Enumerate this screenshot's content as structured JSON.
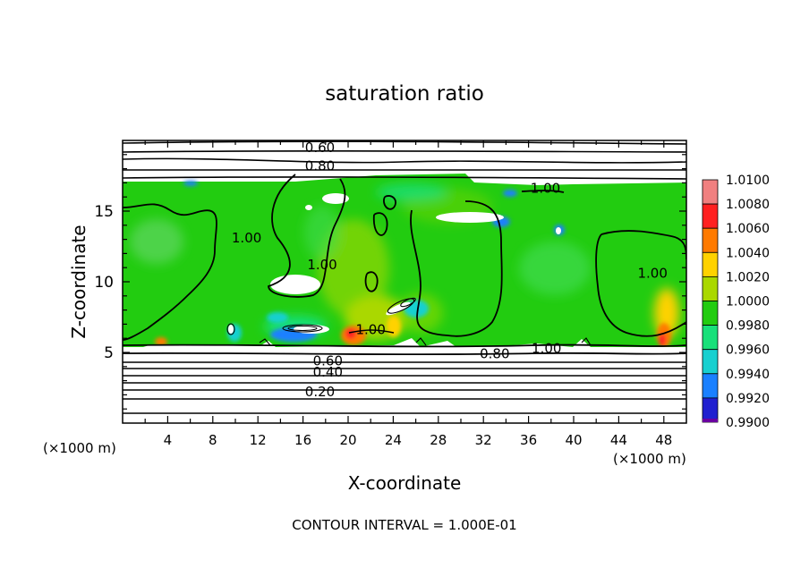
{
  "chart_data": {
    "type": "heatmap",
    "title": "saturation ratio",
    "xlabel": "X-coordinate",
    "ylabel": "Z-coordinate",
    "x_unit": "(×1000 m)",
    "y_unit": "(×1000 m)",
    "xlim": [
      0,
      50
    ],
    "ylim": [
      0,
      20
    ],
    "x_ticks": [
      "4",
      "8",
      "12",
      "16",
      "20",
      "24",
      "28",
      "32",
      "36",
      "40",
      "44",
      "48"
    ],
    "y_ticks": [
      "5",
      "10",
      "15"
    ],
    "footer": "CONTOUR INTERVAL = 1.000E-01",
    "colorbar": {
      "levels": [
        "1.0100",
        "1.0080",
        "1.0060",
        "1.0040",
        "1.0020",
        "1.0000",
        "0.9980",
        "0.9960",
        "0.9940",
        "0.9920",
        "0.9900"
      ],
      "colors": [
        "#f08080",
        "#ff2020",
        "#ff7a00",
        "#ffd200",
        "#aad800",
        "#22cc10",
        "#18e07a",
        "#18d0d0",
        "#1a80ff",
        "#2020d0",
        "#6a00a0"
      ]
    },
    "contour_labels": [
      {
        "text": "0.60",
        "x": 17.5,
        "z": 19.5
      },
      {
        "text": "0.80",
        "x": 17.5,
        "z": 18.2
      },
      {
        "text": "1.00",
        "x": 37.5,
        "z": 16.6
      },
      {
        "text": "1.00",
        "x": 11.0,
        "z": 13.1
      },
      {
        "text": "1.00",
        "x": 17.7,
        "z": 11.2
      },
      {
        "text": "1.00",
        "x": 47.0,
        "z": 10.6
      },
      {
        "text": "1.00",
        "x": 22.0,
        "z": 6.6
      },
      {
        "text": "1.00",
        "x": 37.6,
        "z": 5.3
      },
      {
        "text": "0.80",
        "x": 33.0,
        "z": 4.9
      },
      {
        "text": "0.60",
        "x": 18.2,
        "z": 4.4
      },
      {
        "text": "0.40",
        "x": 18.2,
        "z": 3.6
      },
      {
        "text": "0.20",
        "x": 17.5,
        "z": 2.2
      }
    ],
    "grid": false
  }
}
